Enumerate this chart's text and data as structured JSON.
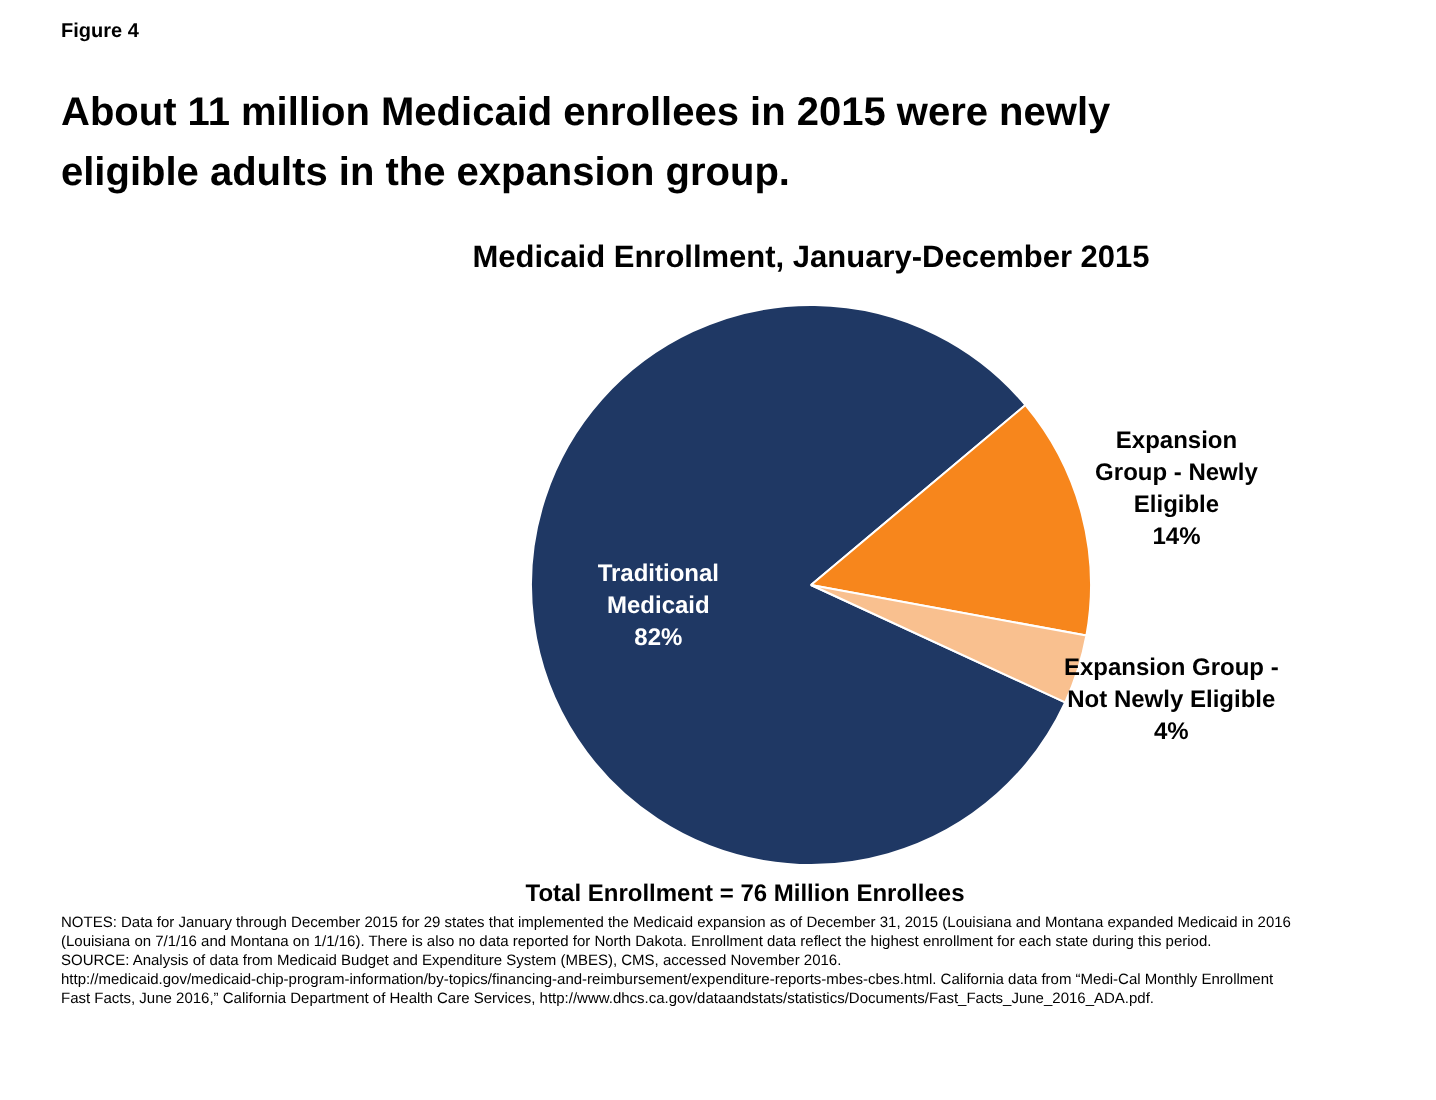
{
  "chart_data": {
    "type": "pie",
    "title": "About 11 million Medicaid enrollees in 2015 were newly eligible adults in the expansion group.",
    "subtitle": "Medicaid Enrollment, January-December 2015",
    "categories": [
      "Traditional Medicaid",
      "Expansion Group - Newly Eligible",
      "Expansion Group - Not Newly Eligible"
    ],
    "values": [
      82,
      14,
      4
    ],
    "colors": [
      "#1f3864",
      "#f7861c",
      "#f9c08f"
    ],
    "value_labels": [
      "82%",
      "14%",
      "4%"
    ],
    "annotations": [
      "Figure 4",
      "Total Enrollment = 76 Million Enrollees",
      "NOTES: Data for January through December 2015 for 29 states that implemented the Medicaid expansion as of December 31, 2015 (Louisiana and Montana expanded Medicaid in 2016 (Louisiana on 7/1/16 and Montana on 1/1/16). There is also no data reported for North Dakota. Enrollment data reflect the highest enrollment for each state during this period.",
      "SOURCE: Analysis of data from Medicaid Budget and Expenditure System (MBES), CMS, accessed November 2016. http://medicaid.gov/medicaid-chip-program-information/by-topics/financing-and-reimbursement/expenditure-reports-mbes-cbes.html. California data from “Medi-Cal Monthly Enrollment Fast Facts, June 2016,” California Department of Health Care Services, http://www.dhcs.ca.gov/dataandstats/statistics/Documents/Fast_Facts_June_2016_ADA.pdf."
    ]
  }
}
